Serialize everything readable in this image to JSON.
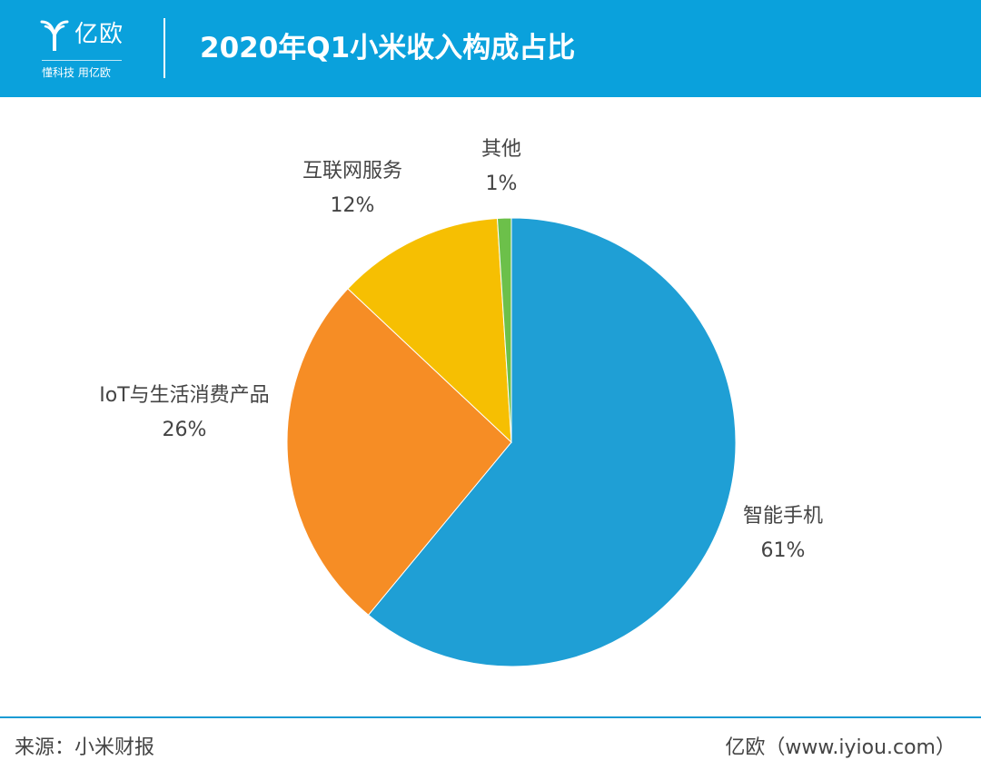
{
  "header": {
    "logo_name": "亿欧",
    "logo_tagline": "懂科技 用亿欧",
    "title": "2020年Q1小米收入构成占比",
    "background_color": "#0aa1dc"
  },
  "chart_data": {
    "type": "pie",
    "title": "2020年Q1小米收入构成占比",
    "slices": [
      {
        "label": "智能手机",
        "value": 61,
        "display": "61%",
        "color": "#1f9fd5"
      },
      {
        "label": "IoT与生活消费产品",
        "value": 26,
        "display": "26%",
        "color": "#f68d25"
      },
      {
        "label": "互联网服务",
        "value": 12,
        "display": "12%",
        "color": "#f6bf02"
      },
      {
        "label": "其他",
        "value": 1,
        "display": "1%",
        "color": "#6cc04a"
      }
    ],
    "start_angle_deg": 0,
    "direction": "clockwise",
    "legend": "none",
    "labels": "outside"
  },
  "footer": {
    "source": "来源：小米财报",
    "brand": "亿欧（www.iyiou.com）",
    "line_color": "#1b9bd4"
  }
}
